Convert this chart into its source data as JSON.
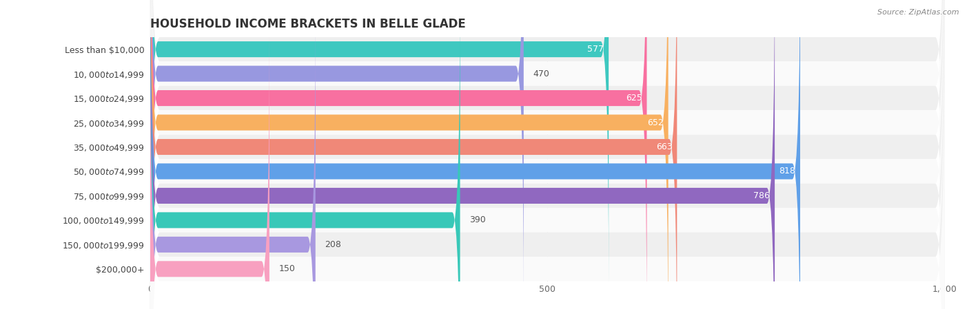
{
  "title": "HOUSEHOLD INCOME BRACKETS IN BELLE GLADE",
  "source": "Source: ZipAtlas.com",
  "categories": [
    "Less than $10,000",
    "$10,000 to $14,999",
    "$15,000 to $24,999",
    "$25,000 to $34,999",
    "$35,000 to $49,999",
    "$50,000 to $74,999",
    "$75,000 to $99,999",
    "$100,000 to $149,999",
    "$150,000 to $199,999",
    "$200,000+"
  ],
  "values": [
    577,
    470,
    625,
    652,
    663,
    818,
    786,
    390,
    208,
    150
  ],
  "bar_colors": [
    "#3ec8c0",
    "#9898e0",
    "#f870a0",
    "#f8b060",
    "#f08878",
    "#60a0e8",
    "#9068c0",
    "#38c8b8",
    "#a898e0",
    "#f8a0c0"
  ],
  "row_bg_colors": [
    "#efefef",
    "#fafafa",
    "#efefef",
    "#fafafa",
    "#efefef",
    "#fafafa",
    "#efefef",
    "#fafafa",
    "#efefef",
    "#fafafa"
  ],
  "xlim": [
    0,
    1000
  ],
  "xticks": [
    0,
    500,
    1000
  ],
  "title_fontsize": 12,
  "label_fontsize": 9,
  "value_fontsize": 9,
  "value_label_threshold": 500,
  "figsize": [
    14.06,
    4.49
  ],
  "dpi": 100
}
